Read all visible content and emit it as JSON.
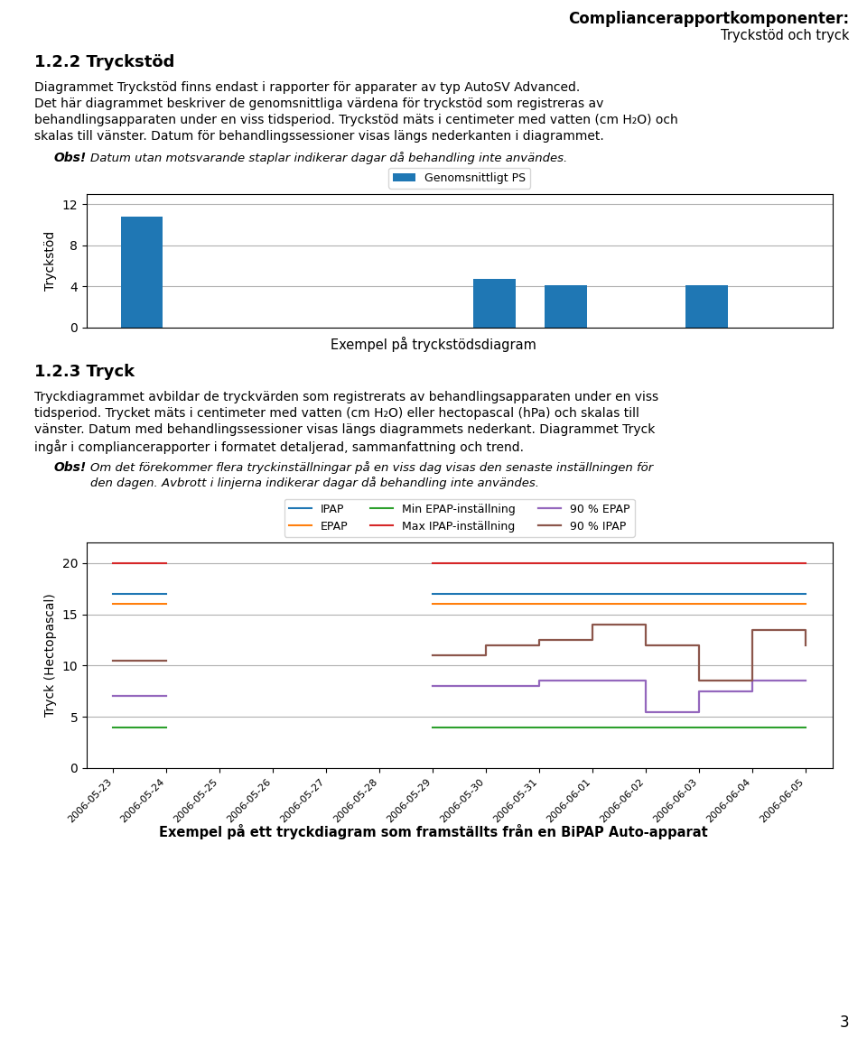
{
  "title": "Compliancerapportkomponenter:",
  "subtitle": "Tryckstöd och tryck",
  "annotations": [
    "3"
  ],
  "chart_data": [
    {
      "type": "bar",
      "title": "1.2.2 Tryckstöd",
      "annotations": [
        [
          "Diagrammet Tryckstöd finns endast i rapporter för apparater av typ AutoSV Advanced.",
          "Det här diagrammet beskriver de genomsnittliga värdena för tryckstöd som registreras av",
          "behandlingsapparaten under en viss tidsperiod. Tryckstöd mäts i centimeter med vatten (cm H₂O) och",
          "skalas till vänster. Datum för behandlingssessioner visas längs nederkanten i diagrammet."
        ],
        [
          "Obs!",
          "Datum utan motsvarande staplar indikerar dagar då behandling inte användes."
        ],
        [
          "Exempel på tryckstödsdiagram"
        ]
      ],
      "y_label": "Tryckstöd",
      "categories": [
        null,
        null,
        null,
        null,
        null,
        null,
        null,
        null,
        null,
        null
      ],
      "series": [
        {
          "name": "Genomsnittligt PS",
          "values": [
            10.8,
            0,
            0,
            0,
            0,
            4.7,
            4.1,
            0,
            4.1,
            0
          ]
        }
      ],
      "ylim": [
        0,
        13
      ],
      "yticks": [
        0,
        4,
        8,
        12
      ],
      "grid": true,
      "legend": "upper center",
      "tick_labels": "y"
    },
    {
      "type": "line",
      "title": "1.2.3 Tryck",
      "annotations": [
        [
          "Tryckdiagrammet avbildar de tryckvärden som registrerats av behandlingsapparaten under en viss",
          "tidsperiod. Trycket mäts i centimeter med vatten (cm H₂O) eller hectopascal (hPa) och skalas till",
          "vänster. Datum med behandlingssessioner visas längs diagrammets nederkant. Diagrammet Tryck",
          "ingår i compliancerapporter i formatet detaljerad, sammanfattning och trend."
        ],
        [
          "Obs!",
          "Om det förekommer flera tryckinställningar på en viss dag visas den senaste inställningen för",
          "den dagen. Avbrott i linjerna indikerar dagar då behandling inte användes."
        ],
        [
          "Exempel på ett tryckdiagram som framställts från en BiPAP Auto-apparat"
        ]
      ],
      "y_label": "Tryck (Hectopascal)",
      "categories": [
        "2006-05-23",
        "2006-05-24",
        "2006-05-25",
        "2006-05-26",
        "2006-05-27",
        "2006-05-28",
        "2006-05-29",
        "2006-05-30",
        "2006-05-31",
        "2006-06-01",
        "2006-06-02",
        "2006-06-03",
        "2006-06-04",
        "2006-06-05"
      ],
      "series": [
        {
          "name": "IPAP",
          "line_style": "solid",
          "values": [
            17,
            17,
            null,
            null,
            null,
            null,
            17,
            17,
            17,
            17,
            17,
            17,
            17,
            17
          ]
        },
        {
          "name": "EPAP",
          "line_style": "solid",
          "values": [
            16,
            16,
            null,
            null,
            null,
            null,
            16,
            16,
            16,
            16,
            16,
            16,
            16,
            16
          ]
        },
        {
          "name": "Min EPAP-inställning",
          "line_style": "solid",
          "values": [
            4,
            4,
            null,
            null,
            null,
            null,
            4,
            4,
            4,
            4,
            4,
            4,
            4,
            4
          ]
        },
        {
          "name": "Max IPAP-inställning",
          "line_style": "solid",
          "values": [
            20,
            20,
            null,
            null,
            null,
            null,
            20,
            20,
            20,
            20,
            20,
            20,
            20,
            20
          ]
        },
        {
          "name": "90 % EPAP",
          "line_style": "steps",
          "values": [
            7,
            7,
            null,
            null,
            null,
            null,
            8,
            8,
            8.5,
            8.5,
            5.5,
            7.5,
            8.5,
            8.5
          ]
        },
        {
          "name": "90 % IPAP",
          "line_style": "steps",
          "values": [
            10.5,
            10.5,
            null,
            null,
            null,
            null,
            11,
            12,
            12.5,
            14,
            12,
            8.5,
            13.5,
            12
          ]
        }
      ],
      "ylim": [
        0,
        22
      ],
      "yticks": [
        0,
        5,
        10,
        15,
        20
      ],
      "grid": true,
      "legend": "upper center"
    }
  ]
}
